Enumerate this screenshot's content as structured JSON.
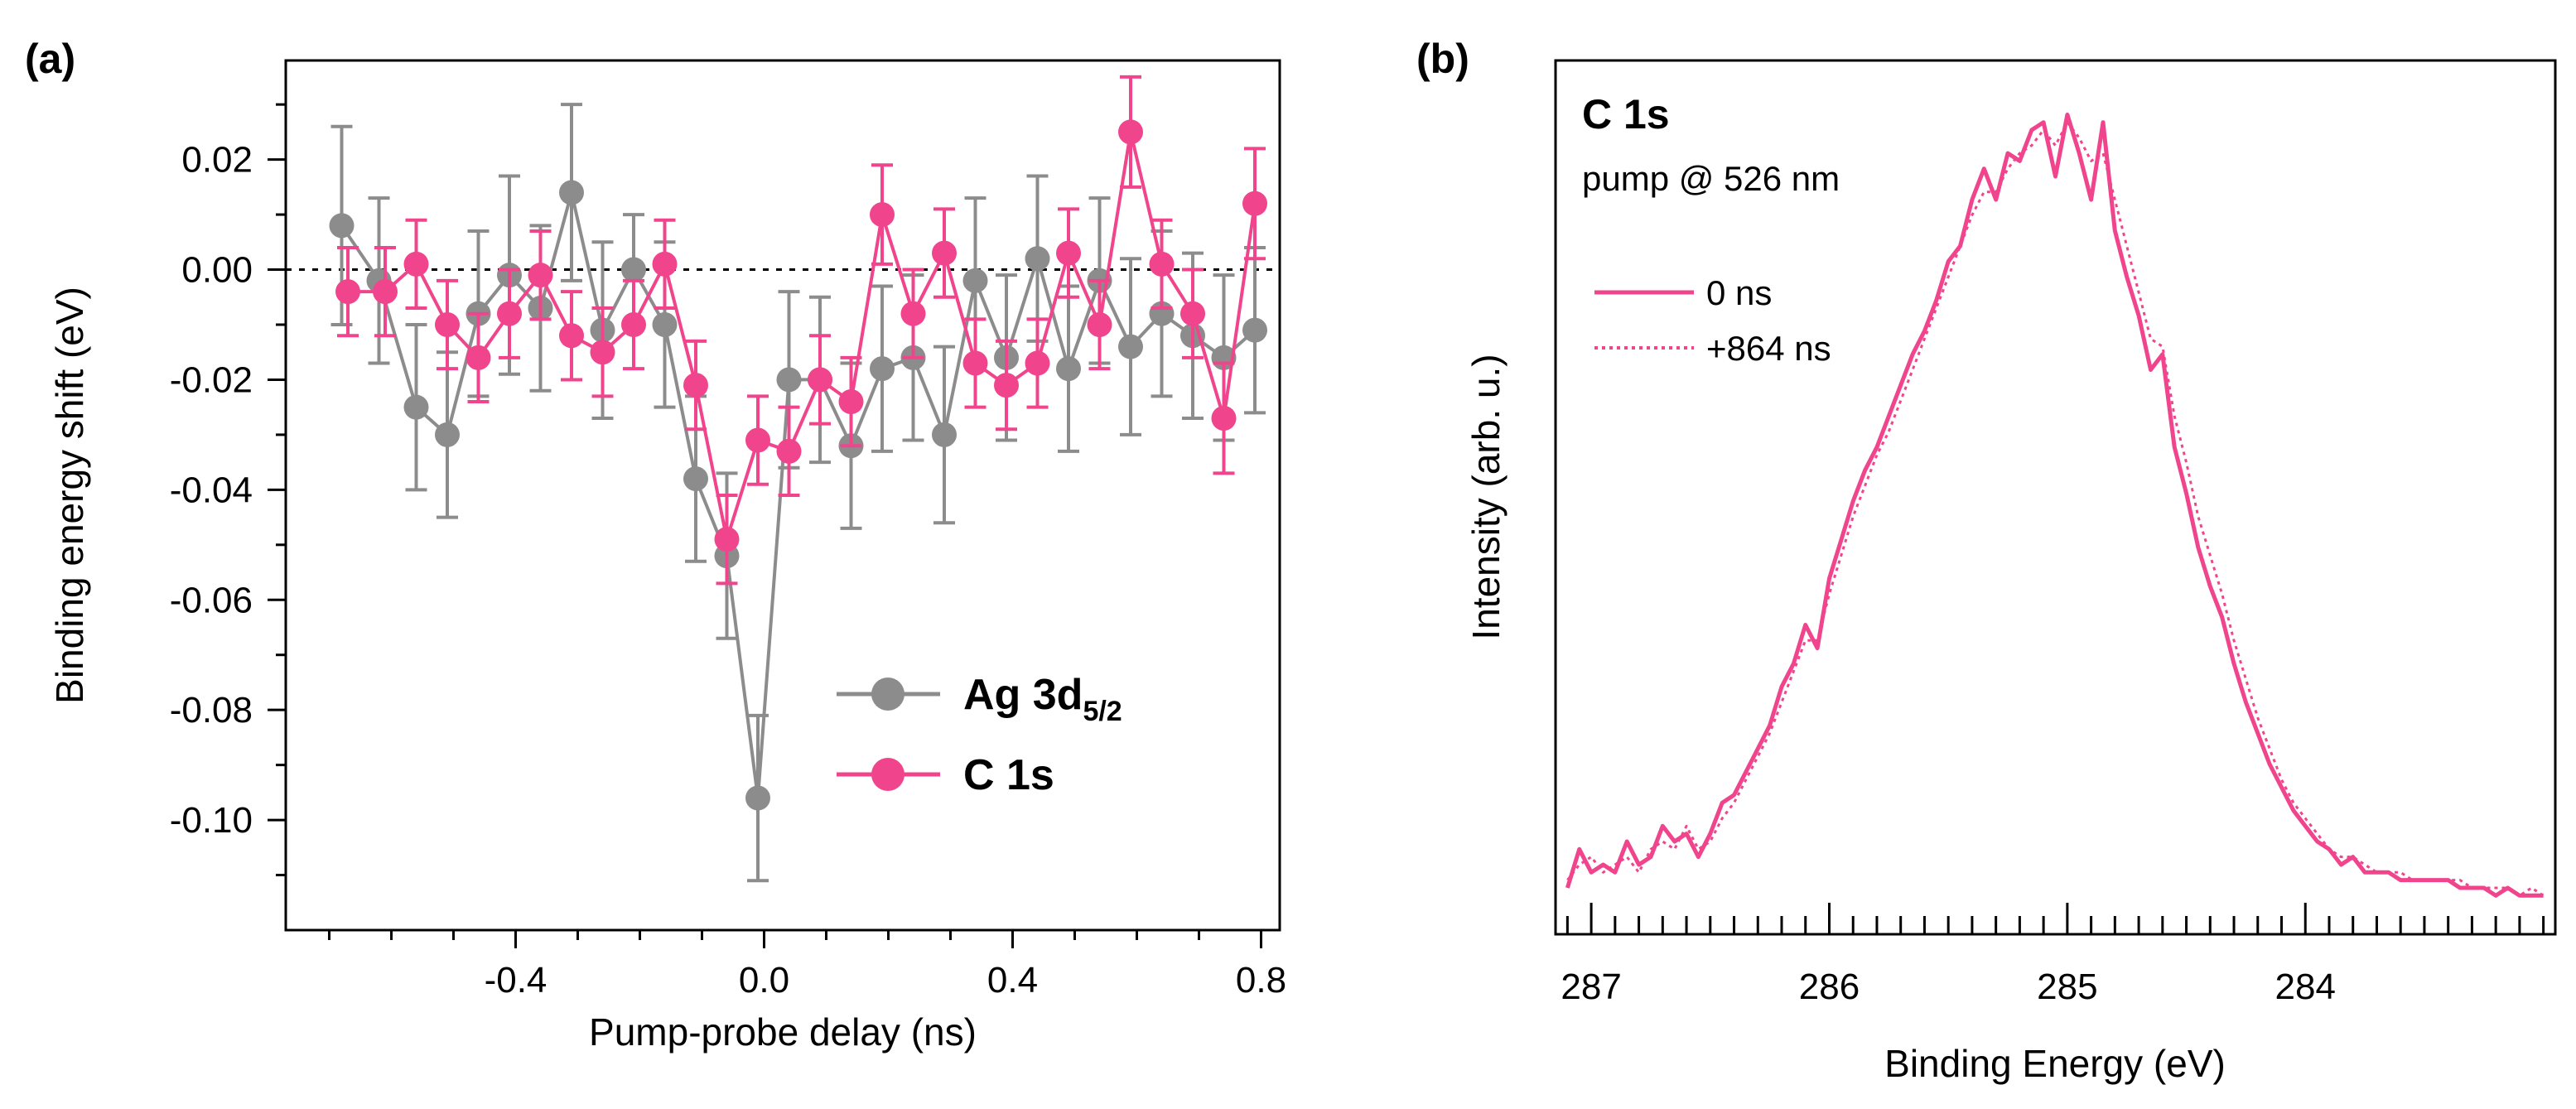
{
  "colors": {
    "gray": "#8c8c8c",
    "pink": "#f0458d",
    "axis": "#000000"
  },
  "chart_data": [
    {
      "panel_label": "(a)",
      "type": "scatter",
      "title": "",
      "xlabel": "Pump-probe delay (ns)",
      "ylabel": "Binding energy shift (eV)",
      "xlim": [
        -0.77,
        0.83
      ],
      "ylim": [
        -0.12,
        0.038
      ],
      "x_ticks": [
        -0.4,
        0.0,
        0.4,
        0.8
      ],
      "x_tick_labels": [
        "-0.4",
        "0.0",
        "0.4",
        "0.8"
      ],
      "y_ticks": [
        0.02,
        0.0,
        -0.02,
        -0.04,
        -0.06,
        -0.08,
        -0.1
      ],
      "y_tick_labels": [
        "0.02",
        "0.00",
        "-0.02",
        "-0.04",
        "-0.06",
        "-0.08",
        "-0.10"
      ],
      "reference_line": 0.0,
      "legend_position": "bottom-right",
      "series": [
        {
          "name": "Ag 3d",
          "name_subscript": "5/2",
          "color": "#8c8c8c",
          "x": [
            -0.68,
            -0.62,
            -0.56,
            -0.51,
            -0.46,
            -0.41,
            -0.36,
            -0.31,
            -0.26,
            -0.21,
            -0.16,
            -0.11,
            -0.06,
            -0.01,
            0.04,
            0.09,
            0.14,
            0.19,
            0.24,
            0.29,
            0.34,
            0.39,
            0.44,
            0.49,
            0.54,
            0.59,
            0.64,
            0.69,
            0.74,
            0.79
          ],
          "y": [
            0.008,
            -0.002,
            -0.025,
            -0.03,
            -0.008,
            -0.001,
            -0.007,
            0.014,
            -0.011,
            0.0,
            -0.01,
            -0.038,
            -0.052,
            -0.096,
            -0.02,
            -0.02,
            -0.032,
            -0.018,
            -0.016,
            -0.03,
            -0.002,
            -0.016,
            0.002,
            -0.018,
            -0.002,
            -0.014,
            -0.008,
            -0.012,
            -0.016,
            -0.011
          ],
          "err": [
            0.018,
            0.015,
            0.015,
            0.015,
            0.015,
            0.018,
            0.015,
            0.016,
            0.016,
            0.01,
            0.015,
            0.015,
            0.015,
            0.015,
            0.016,
            0.015,
            0.015,
            0.015,
            0.015,
            0.016,
            0.015,
            0.015,
            0.015,
            0.015,
            0.015,
            0.016,
            0.015,
            0.015,
            0.015,
            0.015
          ]
        },
        {
          "name": "C 1s",
          "color": "#f0458d",
          "x": [
            -0.67,
            -0.61,
            -0.56,
            -0.51,
            -0.46,
            -0.41,
            -0.36,
            -0.31,
            -0.26,
            -0.21,
            -0.16,
            -0.11,
            -0.06,
            -0.01,
            0.04,
            0.09,
            0.14,
            0.19,
            0.24,
            0.29,
            0.34,
            0.39,
            0.44,
            0.49,
            0.54,
            0.59,
            0.64,
            0.69,
            0.74,
            0.79
          ],
          "y": [
            -0.004,
            -0.004,
            0.001,
            -0.01,
            -0.016,
            -0.008,
            -0.001,
            -0.012,
            -0.015,
            -0.01,
            0.001,
            -0.021,
            -0.049,
            -0.031,
            -0.033,
            -0.02,
            -0.024,
            0.01,
            -0.008,
            0.003,
            -0.017,
            -0.021,
            -0.017,
            0.003,
            -0.01,
            0.025,
            0.001,
            -0.008,
            -0.027,
            0.012
          ],
          "err": [
            0.008,
            0.008,
            0.008,
            0.008,
            0.008,
            0.008,
            0.008,
            0.008,
            0.008,
            0.008,
            0.008,
            0.008,
            0.008,
            0.008,
            0.008,
            0.008,
            0.008,
            0.009,
            0.008,
            0.008,
            0.008,
            0.008,
            0.008,
            0.008,
            0.008,
            0.01,
            0.008,
            0.008,
            0.01,
            0.01
          ]
        }
      ]
    },
    {
      "panel_label": "(b)",
      "type": "line",
      "title": "C 1s",
      "subtitle": "pump @ 526 nm",
      "xlabel": "Binding Energy (eV)",
      "ylabel": "Intensity (arb. u.)",
      "xlim": [
        287.15,
        282.95
      ],
      "ylim": [
        -0.05,
        1.08
      ],
      "x_reversed": true,
      "x_ticks": [
        287,
        286,
        285,
        284
      ],
      "x_tick_labels": [
        "287",
        "286",
        "285",
        "284"
      ],
      "y_ticks_shown": false,
      "legend_position": "top-left",
      "series": [
        {
          "name": "0 ns",
          "color": "#f0458d",
          "style": "solid",
          "x": [
            287.1,
            287.05,
            287.0,
            286.95,
            286.9,
            286.85,
            286.8,
            286.75,
            286.7,
            286.65,
            286.6,
            286.55,
            286.5,
            286.45,
            286.4,
            286.35,
            286.3,
            286.25,
            286.2,
            286.15,
            286.1,
            286.05,
            286.0,
            285.95,
            285.9,
            285.85,
            285.8,
            285.75,
            285.7,
            285.65,
            285.6,
            285.55,
            285.5,
            285.45,
            285.4,
            285.35,
            285.3,
            285.25,
            285.2,
            285.15,
            285.1,
            285.05,
            285.0,
            284.95,
            284.9,
            284.85,
            284.8,
            284.75,
            284.7,
            284.65,
            284.6,
            284.55,
            284.5,
            284.45,
            284.4,
            284.35,
            284.3,
            284.25,
            284.2,
            284.15,
            284.1,
            284.05,
            284.0,
            283.95,
            283.9,
            283.85,
            283.8,
            283.75,
            283.7,
            283.65,
            283.6,
            283.55,
            283.5,
            283.45,
            283.4,
            283.35,
            283.3,
            283.25,
            283.2,
            283.15,
            283.1,
            283.05,
            283.0
          ],
          "y": [
            0.01,
            0.06,
            0.03,
            0.04,
            0.03,
            0.07,
            0.04,
            0.05,
            0.09,
            0.07,
            0.08,
            0.05,
            0.08,
            0.12,
            0.13,
            0.16,
            0.19,
            0.22,
            0.27,
            0.3,
            0.35,
            0.32,
            0.41,
            0.46,
            0.51,
            0.55,
            0.58,
            0.62,
            0.66,
            0.7,
            0.73,
            0.77,
            0.82,
            0.84,
            0.9,
            0.94,
            0.9,
            0.96,
            0.95,
            0.99,
            1.0,
            0.93,
            1.01,
            0.96,
            0.9,
            1.0,
            0.86,
            0.8,
            0.75,
            0.68,
            0.7,
            0.58,
            0.52,
            0.45,
            0.4,
            0.36,
            0.3,
            0.25,
            0.21,
            0.17,
            0.14,
            0.11,
            0.09,
            0.07,
            0.06,
            0.04,
            0.05,
            0.03,
            0.03,
            0.03,
            0.02,
            0.02,
            0.02,
            0.02,
            0.02,
            0.01,
            0.01,
            0.01,
            0.0,
            0.01,
            0.0,
            0.0,
            0.0
          ]
        },
        {
          "name": "+864 ns",
          "color": "#f0458d",
          "style": "dotted",
          "x": [
            287.1,
            287.05,
            287.0,
            286.95,
            286.9,
            286.85,
            286.8,
            286.75,
            286.7,
            286.65,
            286.6,
            286.55,
            286.5,
            286.45,
            286.4,
            286.35,
            286.3,
            286.25,
            286.2,
            286.15,
            286.1,
            286.05,
            286.0,
            285.95,
            285.9,
            285.85,
            285.8,
            285.75,
            285.7,
            285.65,
            285.6,
            285.55,
            285.5,
            285.45,
            285.4,
            285.35,
            285.3,
            285.25,
            285.2,
            285.15,
            285.1,
            285.05,
            285.0,
            284.95,
            284.9,
            284.85,
            284.8,
            284.75,
            284.7,
            284.65,
            284.6,
            284.55,
            284.5,
            284.45,
            284.4,
            284.35,
            284.3,
            284.25,
            284.2,
            284.15,
            284.1,
            284.05,
            284.0,
            283.95,
            283.9,
            283.85,
            283.8,
            283.75,
            283.7,
            283.65,
            283.6,
            283.55,
            283.5,
            283.45,
            283.4,
            283.35,
            283.3,
            283.25,
            283.2,
            283.15,
            283.1,
            283.05,
            283.0
          ],
          "y": [
            0.02,
            0.04,
            0.05,
            0.03,
            0.04,
            0.05,
            0.03,
            0.06,
            0.07,
            0.06,
            0.09,
            0.06,
            0.07,
            0.1,
            0.12,
            0.15,
            0.18,
            0.21,
            0.25,
            0.29,
            0.33,
            0.33,
            0.39,
            0.44,
            0.49,
            0.53,
            0.57,
            0.6,
            0.64,
            0.68,
            0.72,
            0.76,
            0.8,
            0.84,
            0.88,
            0.91,
            0.91,
            0.94,
            0.96,
            0.97,
            0.99,
            0.97,
            1.0,
            0.98,
            0.95,
            0.96,
            0.9,
            0.84,
            0.78,
            0.72,
            0.71,
            0.62,
            0.56,
            0.49,
            0.44,
            0.39,
            0.33,
            0.28,
            0.23,
            0.19,
            0.15,
            0.12,
            0.1,
            0.08,
            0.06,
            0.05,
            0.05,
            0.04,
            0.03,
            0.03,
            0.03,
            0.02,
            0.02,
            0.02,
            0.02,
            0.02,
            0.01,
            0.01,
            0.01,
            0.01,
            0.0,
            0.01,
            0.0
          ]
        }
      ]
    }
  ]
}
